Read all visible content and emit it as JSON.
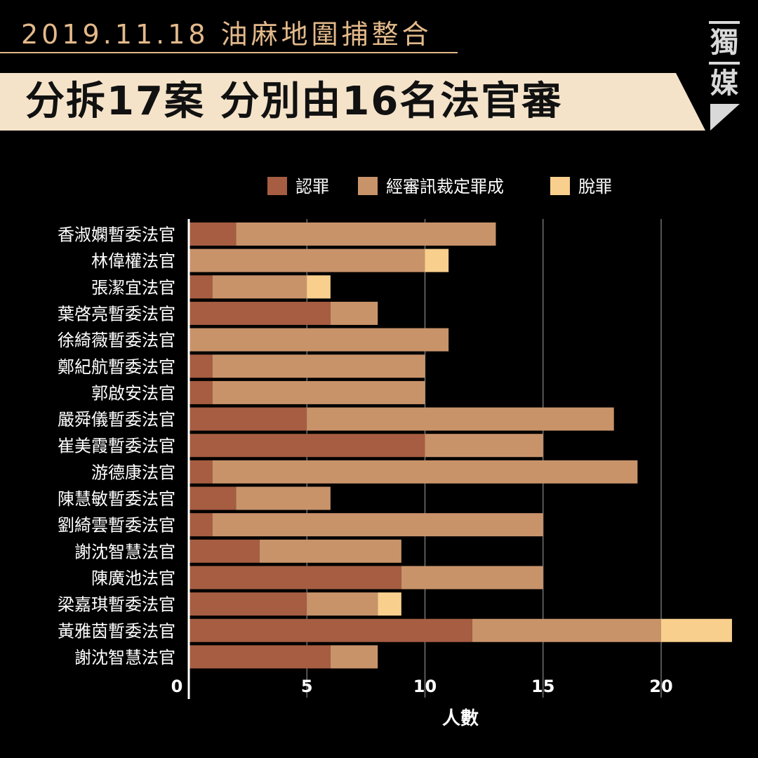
{
  "header": {
    "date_line": "2019.11.18 油麻地圍捕整合",
    "headline": "分拆17案 分別由16名法官審",
    "logo_top": "獨",
    "logo_bottom": "媒"
  },
  "chart_data": {
    "type": "bar",
    "orientation": "horizontal",
    "stacked": true,
    "title": "",
    "xlabel": "人數",
    "ylabel": "",
    "xlim": [
      0,
      23
    ],
    "xticks": [
      0,
      5,
      10,
      15,
      20
    ],
    "grid": true,
    "legend_position": "top",
    "categories": [
      "香淑嫻暫委法官",
      "林偉權法官",
      "張潔宜法官",
      "葉啓亮暫委法官",
      "徐綺薇暫委法官",
      "鄭紀航暫委法官",
      "郭啟安法官",
      "嚴舜儀暫委法官",
      "崔美霞暫委法官",
      "游德康法官",
      "陳慧敏暫委法官",
      "劉綺雲暫委法官",
      "謝沈智慧法官",
      "陳廣池法官",
      "梁嘉琪暫委法官",
      "黃雅茵暫委法官",
      "謝沈智慧法官"
    ],
    "series": [
      {
        "name": "認罪",
        "color": "#a65d42",
        "values": [
          2,
          0,
          1,
          6,
          0,
          1,
          1,
          5,
          10,
          1,
          2,
          1,
          3,
          9,
          5,
          12,
          6
        ]
      },
      {
        "name": "經審訊裁定罪成",
        "color": "#c9936a",
        "values": [
          11,
          10,
          4,
          2,
          11,
          9,
          9,
          13,
          5,
          18,
          4,
          14,
          6,
          6,
          3,
          8,
          2
        ]
      },
      {
        "name": "脫罪",
        "color": "#f9cf8e",
        "values": [
          0,
          1,
          1,
          0,
          0,
          0,
          0,
          0,
          0,
          0,
          0,
          0,
          0,
          0,
          1,
          3,
          0
        ]
      }
    ]
  }
}
